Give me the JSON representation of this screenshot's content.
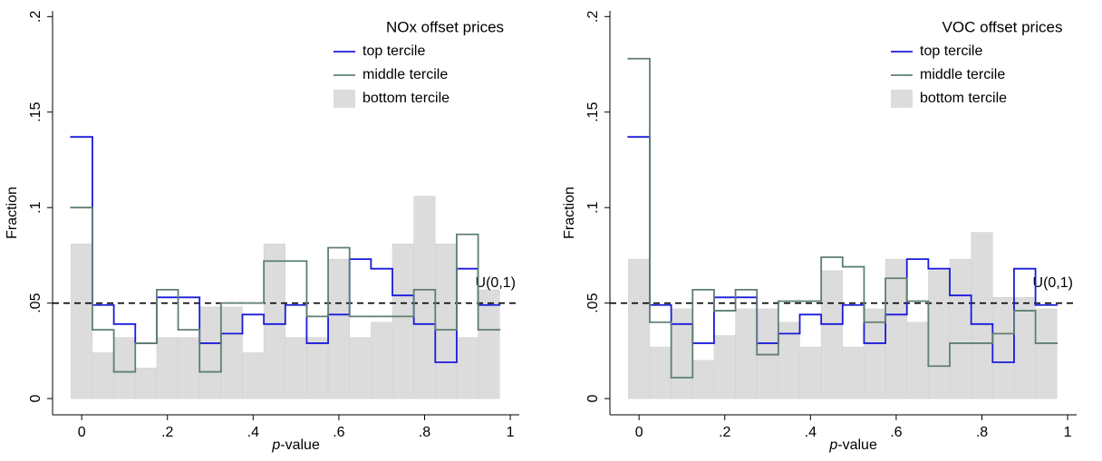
{
  "chart_data": [
    {
      "type": "histogram",
      "legend_title": "NOx offset prices",
      "y_label": "Fraction",
      "x_label_italic": "p",
      "x_label": "-value",
      "bins": [
        -0.025,
        0.025,
        0.075,
        0.125,
        0.175,
        0.225,
        0.275,
        0.325,
        0.375,
        0.425,
        0.475,
        0.525,
        0.575,
        0.625,
        0.675,
        0.725,
        0.775,
        0.825,
        0.875,
        0.925,
        0.975
      ],
      "xlim": [
        -0.068,
        1.021
      ],
      "ylim": [
        -0.0085,
        0.203
      ],
      "xticks": [
        0,
        {
          "value": 0.2,
          "label": ".2"
        },
        {
          "value": 0.4,
          "label": ".4"
        },
        {
          "value": 0.6,
          "label": ".6"
        },
        {
          "value": 0.8,
          "label": ".8"
        },
        1
      ],
      "yticks": [
        0,
        {
          "value": 0.05,
          "label": ".05"
        },
        {
          "value": 0.1,
          "label": ".1"
        },
        {
          "value": 0.15,
          "label": ".15"
        },
        {
          "value": 0.2,
          "label": ".2"
        }
      ],
      "refline": 0.05,
      "refline_label": "U(0,1)",
      "legend": "top-right",
      "series": [
        {
          "name": "top tercile",
          "style": "step",
          "color": "#1a1adb",
          "values": [
            0.137,
            0.049,
            0.039,
            0.029,
            0.053,
            0.053,
            0.029,
            0.034,
            0.044,
            0.039,
            0.049,
            0.029,
            0.044,
            0.073,
            0.068,
            0.054,
            0.039,
            0.019,
            0.068,
            0.049
          ]
        },
        {
          "name": "middle tercile",
          "style": "step",
          "color": "#5f7f72",
          "values": [
            0.1,
            0.036,
            0.014,
            0.029,
            0.057,
            0.036,
            0.014,
            0.05,
            0.05,
            0.072,
            0.072,
            0.043,
            0.079,
            0.043,
            0.043,
            0.043,
            0.057,
            0.036,
            0.086,
            0.036
          ]
        },
        {
          "name": "bottom tercile",
          "style": "bar",
          "color": "#dcdcdc",
          "values": [
            0.081,
            0.024,
            0.032,
            0.016,
            0.032,
            0.032,
            0.048,
            0.048,
            0.024,
            0.081,
            0.032,
            0.032,
            0.073,
            0.032,
            0.04,
            0.081,
            0.106,
            0.081,
            0.032,
            0.057
          ]
        }
      ]
    },
    {
      "type": "histogram",
      "legend_title": "VOC offset prices",
      "y_label": "Fraction",
      "x_label_italic": "p",
      "x_label": "-value",
      "bins": [
        -0.025,
        0.025,
        0.075,
        0.125,
        0.175,
        0.225,
        0.275,
        0.325,
        0.375,
        0.425,
        0.475,
        0.525,
        0.575,
        0.625,
        0.675,
        0.725,
        0.775,
        0.825,
        0.875,
        0.925,
        0.975
      ],
      "xlim": [
        -0.068,
        1.021
      ],
      "ylim": [
        -0.0085,
        0.203
      ],
      "xticks": [
        0,
        {
          "value": 0.2,
          "label": ".2"
        },
        {
          "value": 0.4,
          "label": ".4"
        },
        {
          "value": 0.6,
          "label": ".6"
        },
        {
          "value": 0.8,
          "label": ".8"
        },
        1
      ],
      "yticks": [
        0,
        {
          "value": 0.05,
          "label": ".05"
        },
        {
          "value": 0.1,
          "label": ".1"
        },
        {
          "value": 0.15,
          "label": ".15"
        },
        {
          "value": 0.2,
          "label": ".2"
        }
      ],
      "refline": 0.05,
      "refline_label": "U(0,1)",
      "legend": "top-right",
      "series": [
        {
          "name": "top tercile",
          "style": "step",
          "color": "#1a1adb",
          "values": [
            0.137,
            0.049,
            0.039,
            0.029,
            0.053,
            0.053,
            0.029,
            0.034,
            0.044,
            0.039,
            0.049,
            0.029,
            0.044,
            0.073,
            0.068,
            0.054,
            0.039,
            0.019,
            0.068,
            0.049
          ]
        },
        {
          "name": "middle tercile",
          "style": "step",
          "color": "#5f7f72",
          "values": [
            0.178,
            0.04,
            0.011,
            0.057,
            0.046,
            0.057,
            0.023,
            0.051,
            0.051,
            0.074,
            0.069,
            0.04,
            0.063,
            0.051,
            0.017,
            0.029,
            0.029,
            0.034,
            0.046,
            0.029
          ]
        },
        {
          "name": "bottom tercile",
          "style": "bar",
          "color": "#dcdcdc",
          "values": [
            0.073,
            0.027,
            0.047,
            0.02,
            0.033,
            0.047,
            0.047,
            0.04,
            0.027,
            0.067,
            0.027,
            0.047,
            0.073,
            0.04,
            0.067,
            0.073,
            0.087,
            0.053,
            0.053,
            0.047
          ]
        }
      ]
    }
  ]
}
